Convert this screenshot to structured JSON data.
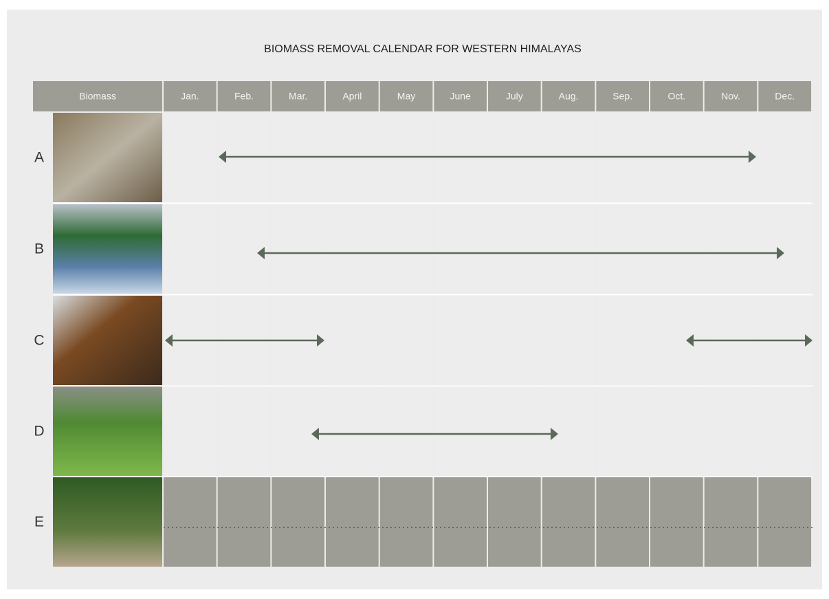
{
  "title": "BIOMASS REMOVAL CALENDAR FOR WESTERN HIMALAYAS",
  "header": {
    "first": "Biomass",
    "months": [
      "Jan.",
      "Feb.",
      "Mar.",
      "April",
      "May",
      "June",
      "July",
      "Aug.",
      "Sep.",
      "Oct.",
      "Nov.",
      "Dec."
    ]
  },
  "rows": [
    "A",
    "B",
    "C",
    "D",
    "E"
  ]
}
